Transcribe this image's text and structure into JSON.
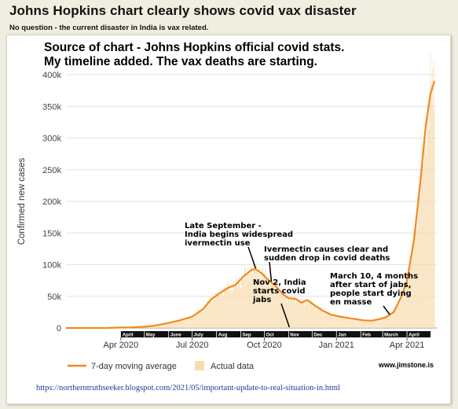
{
  "page": {
    "title": "Johns Hopkins chart clearly shows covid vax disaster",
    "subtitle": "No question - the current disaster in India is vax related.",
    "url": "https://northerntruthseeker.blogspot.com/2021/05/important-update-to-real-situation-in.html"
  },
  "chart_data": {
    "type": "area",
    "title_lines": [
      "Source of chart - Johns Hopkins official covid stats.",
      "My timeline added.  The vax deaths are starting."
    ],
    "ylabel": "Confirmed new cases",
    "xlabel": "",
    "ylim": [
      0,
      400000
    ],
    "xlim": [
      "2020-01-22",
      "2021-05-09"
    ],
    "y_ticks": [
      {
        "value": 0,
        "label": "0"
      },
      {
        "value": 50000,
        "label": "50k"
      },
      {
        "value": 100000,
        "label": "100k"
      },
      {
        "value": 150000,
        "label": "150k"
      },
      {
        "value": 200000,
        "label": "200k"
      },
      {
        "value": 250000,
        "label": "250k"
      },
      {
        "value": 300000,
        "label": "300k"
      },
      {
        "value": 350000,
        "label": "350k"
      },
      {
        "value": 400000,
        "label": "400k"
      }
    ],
    "x_ticks": [
      {
        "date": "2020-04-01",
        "label": "Apr 2020"
      },
      {
        "date": "2020-07-01",
        "label": "Jul 2020"
      },
      {
        "date": "2020-10-01",
        "label": "Oct 2020"
      },
      {
        "date": "2021-01-01",
        "label": "Jan 2021"
      },
      {
        "date": "2021-04-01",
        "label": "Apr 2021"
      }
    ],
    "month_bar": [
      {
        "start": "2020-04-01",
        "label": "April"
      },
      {
        "start": "2020-05-01",
        "label": "May"
      },
      {
        "start": "2020-06-01",
        "label": "June"
      },
      {
        "start": "2020-07-01",
        "label": "July"
      },
      {
        "start": "2020-08-01",
        "label": "Aug"
      },
      {
        "start": "2020-09-01",
        "label": "Sep"
      },
      {
        "start": "2020-10-01",
        "label": "Oct"
      },
      {
        "start": "2020-11-01",
        "label": "Nov"
      },
      {
        "start": "2020-12-01",
        "label": "Dec"
      },
      {
        "start": "2021-01-01",
        "label": "Jan"
      },
      {
        "start": "2021-02-01",
        "label": "Feb"
      },
      {
        "start": "2021-03-01",
        "label": "March"
      },
      {
        "start": "2021-04-01",
        "label": "April"
      }
    ],
    "series": [
      {
        "name": "7-day moving average",
        "color": "#f28a1e",
        "points": [
          {
            "x": "2020-01-22",
            "y": 0
          },
          {
            "x": "2020-03-15",
            "y": 100
          },
          {
            "x": "2020-04-01",
            "y": 800
          },
          {
            "x": "2020-04-15",
            "y": 1000
          },
          {
            "x": "2020-05-01",
            "y": 2000
          },
          {
            "x": "2020-05-15",
            "y": 4000
          },
          {
            "x": "2020-06-01",
            "y": 8000
          },
          {
            "x": "2020-06-15",
            "y": 12000
          },
          {
            "x": "2020-07-01",
            "y": 18000
          },
          {
            "x": "2020-07-15",
            "y": 30000
          },
          {
            "x": "2020-07-25",
            "y": 45000
          },
          {
            "x": "2020-08-05",
            "y": 55000
          },
          {
            "x": "2020-08-15",
            "y": 63000
          },
          {
            "x": "2020-08-25",
            "y": 68000
          },
          {
            "x": "2020-09-05",
            "y": 82000
          },
          {
            "x": "2020-09-15",
            "y": 92000
          },
          {
            "x": "2020-09-20",
            "y": 93000
          },
          {
            "x": "2020-09-28",
            "y": 86000
          },
          {
            "x": "2020-10-05",
            "y": 77000
          },
          {
            "x": "2020-10-15",
            "y": 67000
          },
          {
            "x": "2020-10-25",
            "y": 53000
          },
          {
            "x": "2020-11-01",
            "y": 47000
          },
          {
            "x": "2020-11-10",
            "y": 46000
          },
          {
            "x": "2020-11-17",
            "y": 40000
          },
          {
            "x": "2020-11-25",
            "y": 44000
          },
          {
            "x": "2020-12-05",
            "y": 35000
          },
          {
            "x": "2020-12-15",
            "y": 27000
          },
          {
            "x": "2020-12-25",
            "y": 21000
          },
          {
            "x": "2021-01-05",
            "y": 18000
          },
          {
            "x": "2021-01-15",
            "y": 16000
          },
          {
            "x": "2021-01-25",
            "y": 14000
          },
          {
            "x": "2021-02-05",
            "y": 12000
          },
          {
            "x": "2021-02-15",
            "y": 11500
          },
          {
            "x": "2021-02-25",
            "y": 14000
          },
          {
            "x": "2021-03-05",
            "y": 17000
          },
          {
            "x": "2021-03-15",
            "y": 25000
          },
          {
            "x": "2021-03-25",
            "y": 50000
          },
          {
            "x": "2021-04-01",
            "y": 75000
          },
          {
            "x": "2021-04-10",
            "y": 140000
          },
          {
            "x": "2021-04-18",
            "y": 230000
          },
          {
            "x": "2021-04-25",
            "y": 320000
          },
          {
            "x": "2021-05-01",
            "y": 370000
          },
          {
            "x": "2021-05-06",
            "y": 390000
          }
        ]
      },
      {
        "name": "Actual data",
        "color": "#f7ddb0",
        "kind": "daily bars"
      }
    ],
    "annotations": [
      {
        "text": [
          "Late September -",
          "India begins widespread",
          "ivermectin use"
        ],
        "target": {
          "x": "2020-09-20",
          "y": 93000
        }
      },
      {
        "text": [
          "Ivermectin causes clear and",
          "sudden drop in covid deaths"
        ],
        "target": {
          "x": "2020-10-10",
          "y": 72000
        }
      },
      {
        "text": [
          "Nov 2, India",
          "starts covid",
          "jabs"
        ],
        "target": {
          "x": "2020-11-02",
          "y": 0
        }
      },
      {
        "text": [
          "March 10, 4 months",
          "after start of jabs,",
          "people start dying",
          "en masse"
        ],
        "target": {
          "x": "2021-03-10",
          "y": 20000
        }
      }
    ],
    "legend_position": "bottom-left",
    "watermark": "www.jimstone.is",
    "grid": "horizontal"
  }
}
